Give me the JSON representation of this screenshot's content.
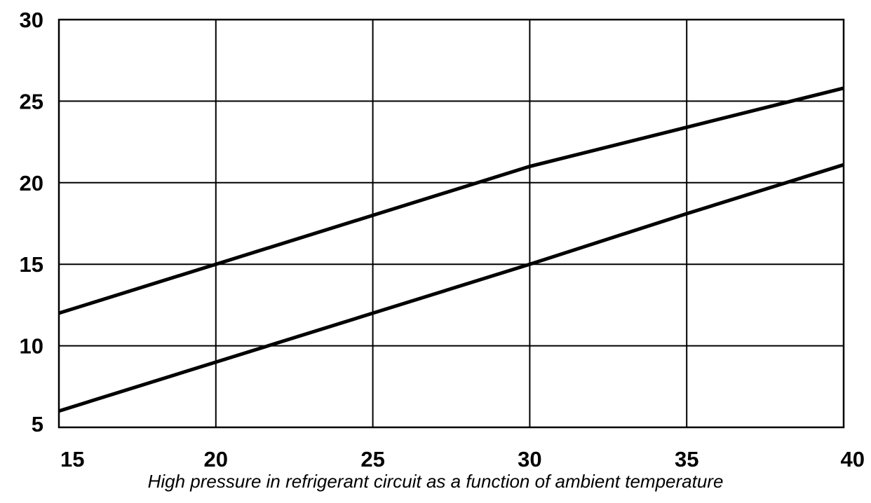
{
  "chart_data": {
    "type": "line",
    "caption": "High pressure in refrigerant circuit as a function of ambient temperature",
    "title": "",
    "xlabel": "",
    "ylabel": "",
    "xlim": [
      15,
      40
    ],
    "ylim": [
      5,
      30
    ],
    "x_ticks": [
      15,
      20,
      25,
      30,
      35,
      40
    ],
    "y_ticks": [
      5,
      10,
      15,
      20,
      25,
      30
    ],
    "x_tick_labels": [
      "15",
      "20",
      "25",
      "30",
      "35",
      "40"
    ],
    "y_tick_labels": [
      "5",
      "10",
      "15",
      "20",
      "25",
      "30"
    ],
    "grid": true,
    "legend": "none",
    "line_color": "#000000",
    "series": [
      {
        "x": [
          15,
          20,
          25,
          30,
          35,
          40
        ],
        "y": [
          12.0,
          15.0,
          18.0,
          21.0,
          23.4,
          25.8
        ]
      },
      {
        "x": [
          15,
          20,
          25,
          30,
          35,
          40
        ],
        "y": [
          6.0,
          9.0,
          12.0,
          15.0,
          18.1,
          21.1
        ]
      }
    ]
  }
}
